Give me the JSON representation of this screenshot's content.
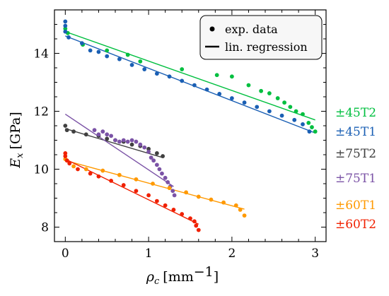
{
  "chart_data": {
    "type": "scatter",
    "xlabel": "ρc [mm⁻¹]",
    "ylabel": "Ex [GPa]",
    "xlim": [
      -0.13,
      3.13
    ],
    "ylim": [
      7.5,
      15.5
    ],
    "x_ticks": [
      0,
      1,
      2,
      3
    ],
    "y_ticks": [
      8,
      10,
      12,
      14
    ],
    "xtick_labels": [
      "0",
      "1",
      "2",
      "3"
    ],
    "ytick_labels": [
      "8",
      "10",
      "12",
      "14"
    ],
    "xlabel_parts": {
      "symbol": "ρ",
      "sub": "c",
      "unit": "[mm",
      "exp": "−1",
      "close": "]"
    },
    "ylabel_parts": {
      "symbol": "E",
      "sub": "x",
      "unit": "[GPa]"
    },
    "legend": {
      "position": "top-right",
      "entries": [
        {
          "label": "exp. data",
          "marker": "dot"
        },
        {
          "label": "lin. regression",
          "marker": "line"
        }
      ]
    },
    "series": [
      {
        "name": "±45T2",
        "color": "#00bf3f",
        "points": [
          [
            0.0,
            14.85
          ],
          [
            0.03,
            14.7
          ],
          [
            0.21,
            14.3
          ],
          [
            0.5,
            14.1
          ],
          [
            0.75,
            13.95
          ],
          [
            0.9,
            13.72
          ],
          [
            1.4,
            13.45
          ],
          [
            1.82,
            13.25
          ],
          [
            2.0,
            13.2
          ],
          [
            2.2,
            12.9
          ],
          [
            2.35,
            12.7
          ],
          [
            2.45,
            12.62
          ],
          [
            2.55,
            12.45
          ],
          [
            2.63,
            12.3
          ],
          [
            2.7,
            12.15
          ],
          [
            2.77,
            12.0
          ],
          [
            2.85,
            11.9
          ],
          [
            2.92,
            11.6
          ],
          [
            2.96,
            11.45
          ],
          [
            3.0,
            11.3
          ]
        ],
        "fit": [
          [
            0.0,
            14.75
          ],
          [
            3.0,
            11.7
          ]
        ]
      },
      {
        "name": "±45T1",
        "color": "#1a5fb4",
        "points": [
          [
            0.0,
            15.1
          ],
          [
            0.0,
            14.95
          ],
          [
            0.0,
            14.75
          ],
          [
            0.04,
            14.55
          ],
          [
            0.2,
            14.35
          ],
          [
            0.3,
            14.1
          ],
          [
            0.4,
            14.05
          ],
          [
            0.5,
            13.9
          ],
          [
            0.65,
            13.8
          ],
          [
            0.8,
            13.6
          ],
          [
            0.95,
            13.45
          ],
          [
            1.1,
            13.3
          ],
          [
            1.25,
            13.2
          ],
          [
            1.4,
            13.05
          ],
          [
            1.55,
            12.9
          ],
          [
            1.7,
            12.75
          ],
          [
            1.85,
            12.6
          ],
          [
            2.0,
            12.45
          ],
          [
            2.15,
            12.3
          ],
          [
            2.3,
            12.15
          ],
          [
            2.45,
            12.0
          ],
          [
            2.6,
            11.85
          ],
          [
            2.75,
            11.7
          ],
          [
            2.85,
            11.55
          ],
          [
            2.93,
            11.3
          ]
        ],
        "fit": [
          [
            0.0,
            14.6
          ],
          [
            3.0,
            11.25
          ]
        ]
      },
      {
        "name": "±75T2",
        "color": "#404040",
        "points": [
          [
            0.0,
            11.5
          ],
          [
            0.02,
            11.35
          ],
          [
            0.1,
            11.3
          ],
          [
            0.25,
            11.2
          ],
          [
            0.4,
            11.15
          ],
          [
            0.5,
            11.05
          ],
          [
            0.6,
            11.0
          ],
          [
            0.7,
            10.95
          ],
          [
            0.8,
            10.85
          ],
          [
            0.9,
            10.8
          ],
          [
            1.0,
            10.7
          ],
          [
            1.1,
            10.55
          ],
          [
            1.17,
            10.45
          ]
        ],
        "fit": [
          [
            0.0,
            11.4
          ],
          [
            1.17,
            10.4
          ]
        ]
      },
      {
        "name": "±75T1",
        "color": "#7b53a6",
        "points": [
          [
            0.35,
            11.35
          ],
          [
            0.4,
            11.2
          ],
          [
            0.45,
            11.3
          ],
          [
            0.5,
            11.2
          ],
          [
            0.55,
            11.15
          ],
          [
            0.6,
            11.0
          ],
          [
            0.65,
            10.95
          ],
          [
            0.7,
            11.0
          ],
          [
            0.75,
            10.95
          ],
          [
            0.8,
            11.0
          ],
          [
            0.85,
            10.95
          ],
          [
            0.9,
            10.85
          ],
          [
            0.95,
            10.75
          ],
          [
            1.0,
            10.6
          ],
          [
            1.03,
            10.4
          ],
          [
            1.06,
            10.3
          ],
          [
            1.1,
            10.15
          ],
          [
            1.13,
            10.0
          ],
          [
            1.16,
            9.85
          ],
          [
            1.2,
            9.7
          ],
          [
            1.23,
            9.55
          ],
          [
            1.26,
            9.4
          ],
          [
            1.29,
            9.25
          ],
          [
            1.31,
            9.1
          ]
        ],
        "fit": [
          [
            0.0,
            11.9
          ],
          [
            1.3,
            9.4
          ]
        ]
      },
      {
        "name": "±60T1",
        "color": "#ff9900",
        "points": [
          [
            0.0,
            10.35
          ],
          [
            0.02,
            10.3
          ],
          [
            0.1,
            10.1
          ],
          [
            0.25,
            10.0
          ],
          [
            0.45,
            9.95
          ],
          [
            0.65,
            9.8
          ],
          [
            0.85,
            9.65
          ],
          [
            1.05,
            9.5
          ],
          [
            1.25,
            9.35
          ],
          [
            1.45,
            9.2
          ],
          [
            1.6,
            9.05
          ],
          [
            1.75,
            8.95
          ],
          [
            1.9,
            8.85
          ],
          [
            2.05,
            8.75
          ],
          [
            2.1,
            8.6
          ],
          [
            2.15,
            8.4
          ]
        ],
        "fit": [
          [
            0.0,
            10.3
          ],
          [
            2.15,
            8.62
          ]
        ]
      },
      {
        "name": "±60T2",
        "color": "#f02000",
        "points": [
          [
            0.0,
            10.55
          ],
          [
            0.0,
            10.45
          ],
          [
            0.02,
            10.3
          ],
          [
            0.05,
            10.2
          ],
          [
            0.15,
            10.0
          ],
          [
            0.3,
            9.85
          ],
          [
            0.4,
            9.75
          ],
          [
            0.55,
            9.6
          ],
          [
            0.7,
            9.45
          ],
          [
            0.85,
            9.25
          ],
          [
            1.0,
            9.1
          ],
          [
            1.1,
            8.9
          ],
          [
            1.2,
            8.75
          ],
          [
            1.3,
            8.6
          ],
          [
            1.4,
            8.45
          ],
          [
            1.5,
            8.3
          ],
          [
            1.55,
            8.2
          ],
          [
            1.57,
            8.05
          ],
          [
            1.6,
            7.9
          ]
        ],
        "fit": [
          [
            0.0,
            10.35
          ],
          [
            1.6,
            8.1
          ]
        ]
      }
    ]
  }
}
